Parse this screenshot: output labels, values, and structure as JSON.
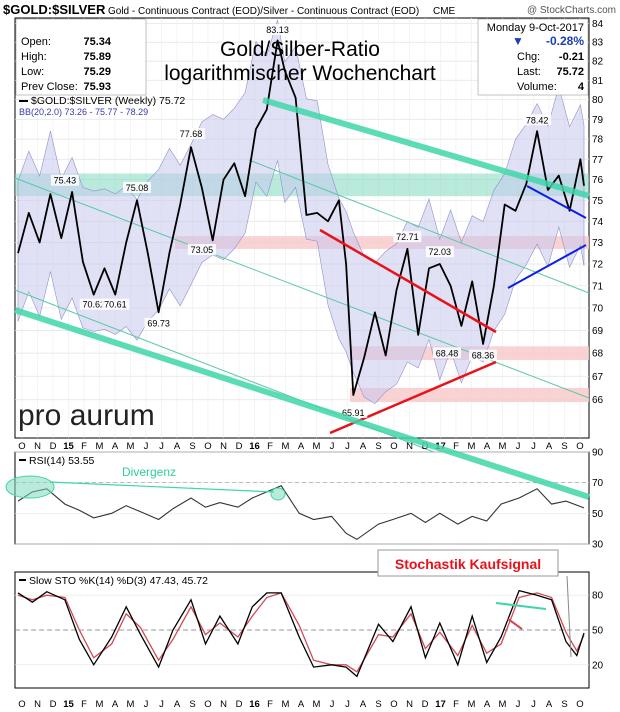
{
  "header": {
    "symbol": "$GOLD:$SILVER",
    "description": "Gold - Continuous Contract (EOD)/Silver - Continuous Contract (EOD)",
    "exchange": "CME",
    "credit": "@ StockCharts.com",
    "date": "Monday  9-Oct-2017",
    "stats_left": [
      {
        "label": "Open:",
        "value": "75.34"
      },
      {
        "label": "High:",
        "value": "75.89"
      },
      {
        "label": "Low:",
        "value": "75.29"
      },
      {
        "label": "Prev Close:",
        "value": "75.93"
      }
    ],
    "change_pct": "-0.28%",
    "stats_right": [
      {
        "label": "Chg:",
        "value": "-0.21"
      },
      {
        "label": "Last:",
        "value": "75.72"
      },
      {
        "label": "Volume:",
        "value": "4"
      }
    ]
  },
  "colors": {
    "price": "#000000",
    "channel": "#3fd6a8",
    "channel_thin": "#5cc9a8",
    "bb_fill": "#c8c8ee",
    "bb_line": "#9090cc",
    "zone_green": "#7fd9c0",
    "zone_red": "#f7c8c8",
    "red_line": "#e8121b",
    "blue_line": "#0c1ee6",
    "stoch_k": "#000000",
    "stoch_d": "#d14a55",
    "header_red": "#e8121b",
    "change_blue": "#1a3fb0"
  },
  "chart_data": [
    {
      "type": "line",
      "panel": "price",
      "title": "Gold/Silber-Ratio",
      "subtitle": "logarithmischer Wochenchart",
      "legend": [
        {
          "label": "$GOLD:$SILVER (Weekly) 75.72"
        },
        {
          "label": "BB(20,2.0) 73.26 - 75.77 - 78.29"
        }
      ],
      "watermark": "pro aurum",
      "ylim": [
        64.4,
        84.3
      ],
      "yscale": "log",
      "yticks": [
        66,
        67,
        68,
        69,
        70,
        71,
        72,
        73,
        74,
        75,
        76,
        77,
        78,
        79,
        80,
        81,
        82,
        83,
        84
      ],
      "x_start": "2014-10-06",
      "x_end": "2017-10-09",
      "x_tick_labels": [
        "O",
        "N",
        "D",
        "15",
        "F",
        "M",
        "A",
        "M",
        "J",
        "J",
        "A",
        "S",
        "O",
        "N",
        "D",
        "16",
        "F",
        "M",
        "A",
        "M",
        "J",
        "J",
        "A",
        "S",
        "O",
        "N",
        "D",
        "17",
        "F",
        "M",
        "A",
        "M",
        "J",
        "J",
        "A",
        "S",
        "O"
      ],
      "series": [
        {
          "values": [
            [
              "2014-10-06",
              72.5
            ],
            [
              "2014-10-27",
              74.4
            ],
            [
              "2014-11-17",
              73.0
            ],
            [
              "2014-12-08",
              75.3
            ],
            [
              "2014-12-29",
              73.2
            ],
            [
              "2015-01-19",
              75.4
            ],
            [
              "2015-02-09",
              72.1
            ],
            [
              "2015-03-02",
              70.6
            ],
            [
              "2015-03-23",
              71.8
            ],
            [
              "2015-04-13",
              70.6
            ],
            [
              "2015-05-04",
              73.0
            ],
            [
              "2015-05-25",
              75.0
            ],
            [
              "2015-06-15",
              72.5
            ],
            [
              "2015-07-06",
              69.8
            ],
            [
              "2015-07-27",
              72.5
            ],
            [
              "2015-08-17",
              74.8
            ],
            [
              "2015-09-07",
              77.6
            ],
            [
              "2015-09-28",
              75.6
            ],
            [
              "2015-10-19",
              73.1
            ],
            [
              "2015-11-09",
              76.0
            ],
            [
              "2015-11-30",
              76.8
            ],
            [
              "2015-12-21",
              75.2
            ],
            [
              "2016-01-11",
              78.5
            ],
            [
              "2016-02-01",
              79.5
            ],
            [
              "2016-02-22",
              83.1
            ],
            [
              "2016-03-07",
              81.5
            ],
            [
              "2016-03-28",
              80.1
            ],
            [
              "2016-04-18",
              74.3
            ],
            [
              "2016-05-09",
              74.4
            ],
            [
              "2016-05-30",
              74.0
            ],
            [
              "2016-06-20",
              75.0
            ],
            [
              "2016-07-04",
              72.0
            ],
            [
              "2016-07-18",
              66.2
            ],
            [
              "2016-08-08",
              67.8
            ],
            [
              "2016-08-29",
              69.8
            ],
            [
              "2016-09-19",
              67.9
            ],
            [
              "2016-10-10",
              70.8
            ],
            [
              "2016-10-31",
              72.7
            ],
            [
              "2016-11-21",
              68.8
            ],
            [
              "2016-12-12",
              71.8
            ],
            [
              "2017-01-02",
              72.0
            ],
            [
              "2017-01-23",
              71.0
            ],
            [
              "2017-02-13",
              69.2
            ],
            [
              "2017-03-06",
              71.2
            ],
            [
              "2017-03-27",
              68.4
            ],
            [
              "2017-04-17",
              71.0
            ],
            [
              "2017-05-08",
              74.8
            ],
            [
              "2017-05-29",
              74.5
            ],
            [
              "2017-06-19",
              75.8
            ],
            [
              "2017-07-10",
              78.4
            ],
            [
              "2017-07-31",
              75.5
            ],
            [
              "2017-08-21",
              76.2
            ],
            [
              "2017-09-11",
              74.5
            ],
            [
              "2017-10-02",
              77.0
            ],
            [
              "2017-10-09",
              75.7
            ]
          ]
        }
      ],
      "annotations": [
        "75.43",
        "75.08",
        "77.68",
        "70.62",
        "70.61",
        "69.73",
        "73.05",
        "83.13",
        "72.71",
        "72.03",
        "68.48",
        "68.36",
        "65.91",
        "78.42"
      ]
    },
    {
      "type": "line",
      "panel": "rsi",
      "legend": "RSI(14) 53.55",
      "annotation": "Divergenz",
      "ylim": [
        30,
        90
      ],
      "yticks": [
        30,
        50,
        70,
        90
      ],
      "levels": [
        30,
        70
      ],
      "series": [
        {
          "values": [
            [
              "2014-10-06",
              58
            ],
            [
              "2014-11-03",
              64
            ],
            [
              "2014-12-01",
              66
            ],
            [
              "2015-01-05",
              56
            ],
            [
              "2015-02-02",
              52
            ],
            [
              "2015-03-02",
              47
            ],
            [
              "2015-04-06",
              50
            ],
            [
              "2015-05-04",
              55
            ],
            [
              "2015-06-01",
              51
            ],
            [
              "2015-07-06",
              46
            ],
            [
              "2015-08-03",
              53
            ],
            [
              "2015-09-07",
              60
            ],
            [
              "2015-10-05",
              54
            ],
            [
              "2015-11-02",
              57
            ],
            [
              "2015-12-07",
              54
            ],
            [
              "2016-01-04",
              60
            ],
            [
              "2016-02-01",
              64
            ],
            [
              "2016-02-29",
              68
            ],
            [
              "2016-04-04",
              50
            ],
            [
              "2016-05-02",
              46
            ],
            [
              "2016-06-06",
              48
            ],
            [
              "2016-07-04",
              37
            ],
            [
              "2016-07-25",
              33
            ],
            [
              "2016-09-05",
              43
            ],
            [
              "2016-10-03",
              46
            ],
            [
              "2016-11-07",
              50
            ],
            [
              "2016-12-05",
              44
            ],
            [
              "2017-01-02",
              50
            ],
            [
              "2017-02-06",
              43
            ],
            [
              "2017-03-06",
              48
            ],
            [
              "2017-04-03",
              45
            ],
            [
              "2017-05-01",
              56
            ],
            [
              "2017-06-05",
              60
            ],
            [
              "2017-07-10",
              66
            ],
            [
              "2017-08-07",
              56
            ],
            [
              "2017-09-04",
              58
            ],
            [
              "2017-10-09",
              53.55
            ]
          ]
        }
      ]
    },
    {
      "type": "line",
      "panel": "stochastic",
      "legend": "Slow STO %K(14) %D(3) 47.43, 45.72",
      "annotation": "Stochastik Kaufsignal",
      "ylim": [
        0,
        100
      ],
      "yticks": [
        20,
        50,
        80
      ],
      "series": [
        {
          "name": "%K(14)",
          "values": [
            [
              "2014-10-06",
              82
            ],
            [
              "2014-11-03",
              74
            ],
            [
              "2014-12-01",
              83
            ],
            [
              "2015-01-05",
              76
            ],
            [
              "2015-02-02",
              42
            ],
            [
              "2015-03-02",
              20
            ],
            [
              "2015-04-06",
              44
            ],
            [
              "2015-05-04",
              70
            ],
            [
              "2015-06-01",
              46
            ],
            [
              "2015-07-06",
              18
            ],
            [
              "2015-08-03",
              50
            ],
            [
              "2015-09-07",
              76
            ],
            [
              "2015-10-05",
              38
            ],
            [
              "2015-11-02",
              62
            ],
            [
              "2015-12-07",
              38
            ],
            [
              "2016-01-04",
              70
            ],
            [
              "2016-02-01",
              82
            ],
            [
              "2016-02-29",
              82
            ],
            [
              "2016-04-04",
              44
            ],
            [
              "2016-05-02",
              18
            ],
            [
              "2016-06-06",
              20
            ],
            [
              "2016-07-04",
              18
            ],
            [
              "2016-07-25",
              10
            ],
            [
              "2016-09-05",
              55
            ],
            [
              "2016-10-03",
              40
            ],
            [
              "2016-11-07",
              70
            ],
            [
              "2016-12-05",
              26
            ],
            [
              "2017-01-02",
              56
            ],
            [
              "2017-02-06",
              20
            ],
            [
              "2017-03-06",
              62
            ],
            [
              "2017-04-03",
              22
            ],
            [
              "2017-05-01",
              44
            ],
            [
              "2017-06-05",
              84
            ],
            [
              "2017-07-10",
              80
            ],
            [
              "2017-08-07",
              76
            ],
            [
              "2017-09-04",
              40
            ],
            [
              "2017-09-25",
              28
            ],
            [
              "2017-10-09",
              47.43
            ]
          ]
        },
        {
          "name": "%D(3)",
          "values": [
            [
              "2014-10-06",
              80
            ],
            [
              "2014-11-03",
              76
            ],
            [
              "2014-12-01",
              80
            ],
            [
              "2015-01-05",
              78
            ],
            [
              "2015-02-02",
              50
            ],
            [
              "2015-03-02",
              26
            ],
            [
              "2015-04-06",
              38
            ],
            [
              "2015-05-04",
              64
            ],
            [
              "2015-06-01",
              52
            ],
            [
              "2015-07-06",
              24
            ],
            [
              "2015-08-03",
              42
            ],
            [
              "2015-09-07",
              70
            ],
            [
              "2015-10-05",
              46
            ],
            [
              "2015-11-02",
              56
            ],
            [
              "2015-12-07",
              44
            ],
            [
              "2016-01-04",
              62
            ],
            [
              "2016-02-01",
              78
            ],
            [
              "2016-02-29",
              82
            ],
            [
              "2016-04-04",
              54
            ],
            [
              "2016-05-02",
              24
            ],
            [
              "2016-06-06",
              20
            ],
            [
              "2016-07-04",
              20
            ],
            [
              "2016-07-25",
              14
            ],
            [
              "2016-09-05",
              46
            ],
            [
              "2016-10-03",
              44
            ],
            [
              "2016-11-07",
              64
            ],
            [
              "2016-12-05",
              34
            ],
            [
              "2017-01-02",
              48
            ],
            [
              "2017-02-06",
              28
            ],
            [
              "2017-03-06",
              54
            ],
            [
              "2017-04-03",
              30
            ],
            [
              "2017-05-01",
              38
            ],
            [
              "2017-06-05",
              78
            ],
            [
              "2017-07-10",
              82
            ],
            [
              "2017-08-07",
              78
            ],
            [
              "2017-09-04",
              48
            ],
            [
              "2017-09-25",
              32
            ],
            [
              "2017-10-09",
              45.72
            ]
          ]
        }
      ]
    }
  ]
}
